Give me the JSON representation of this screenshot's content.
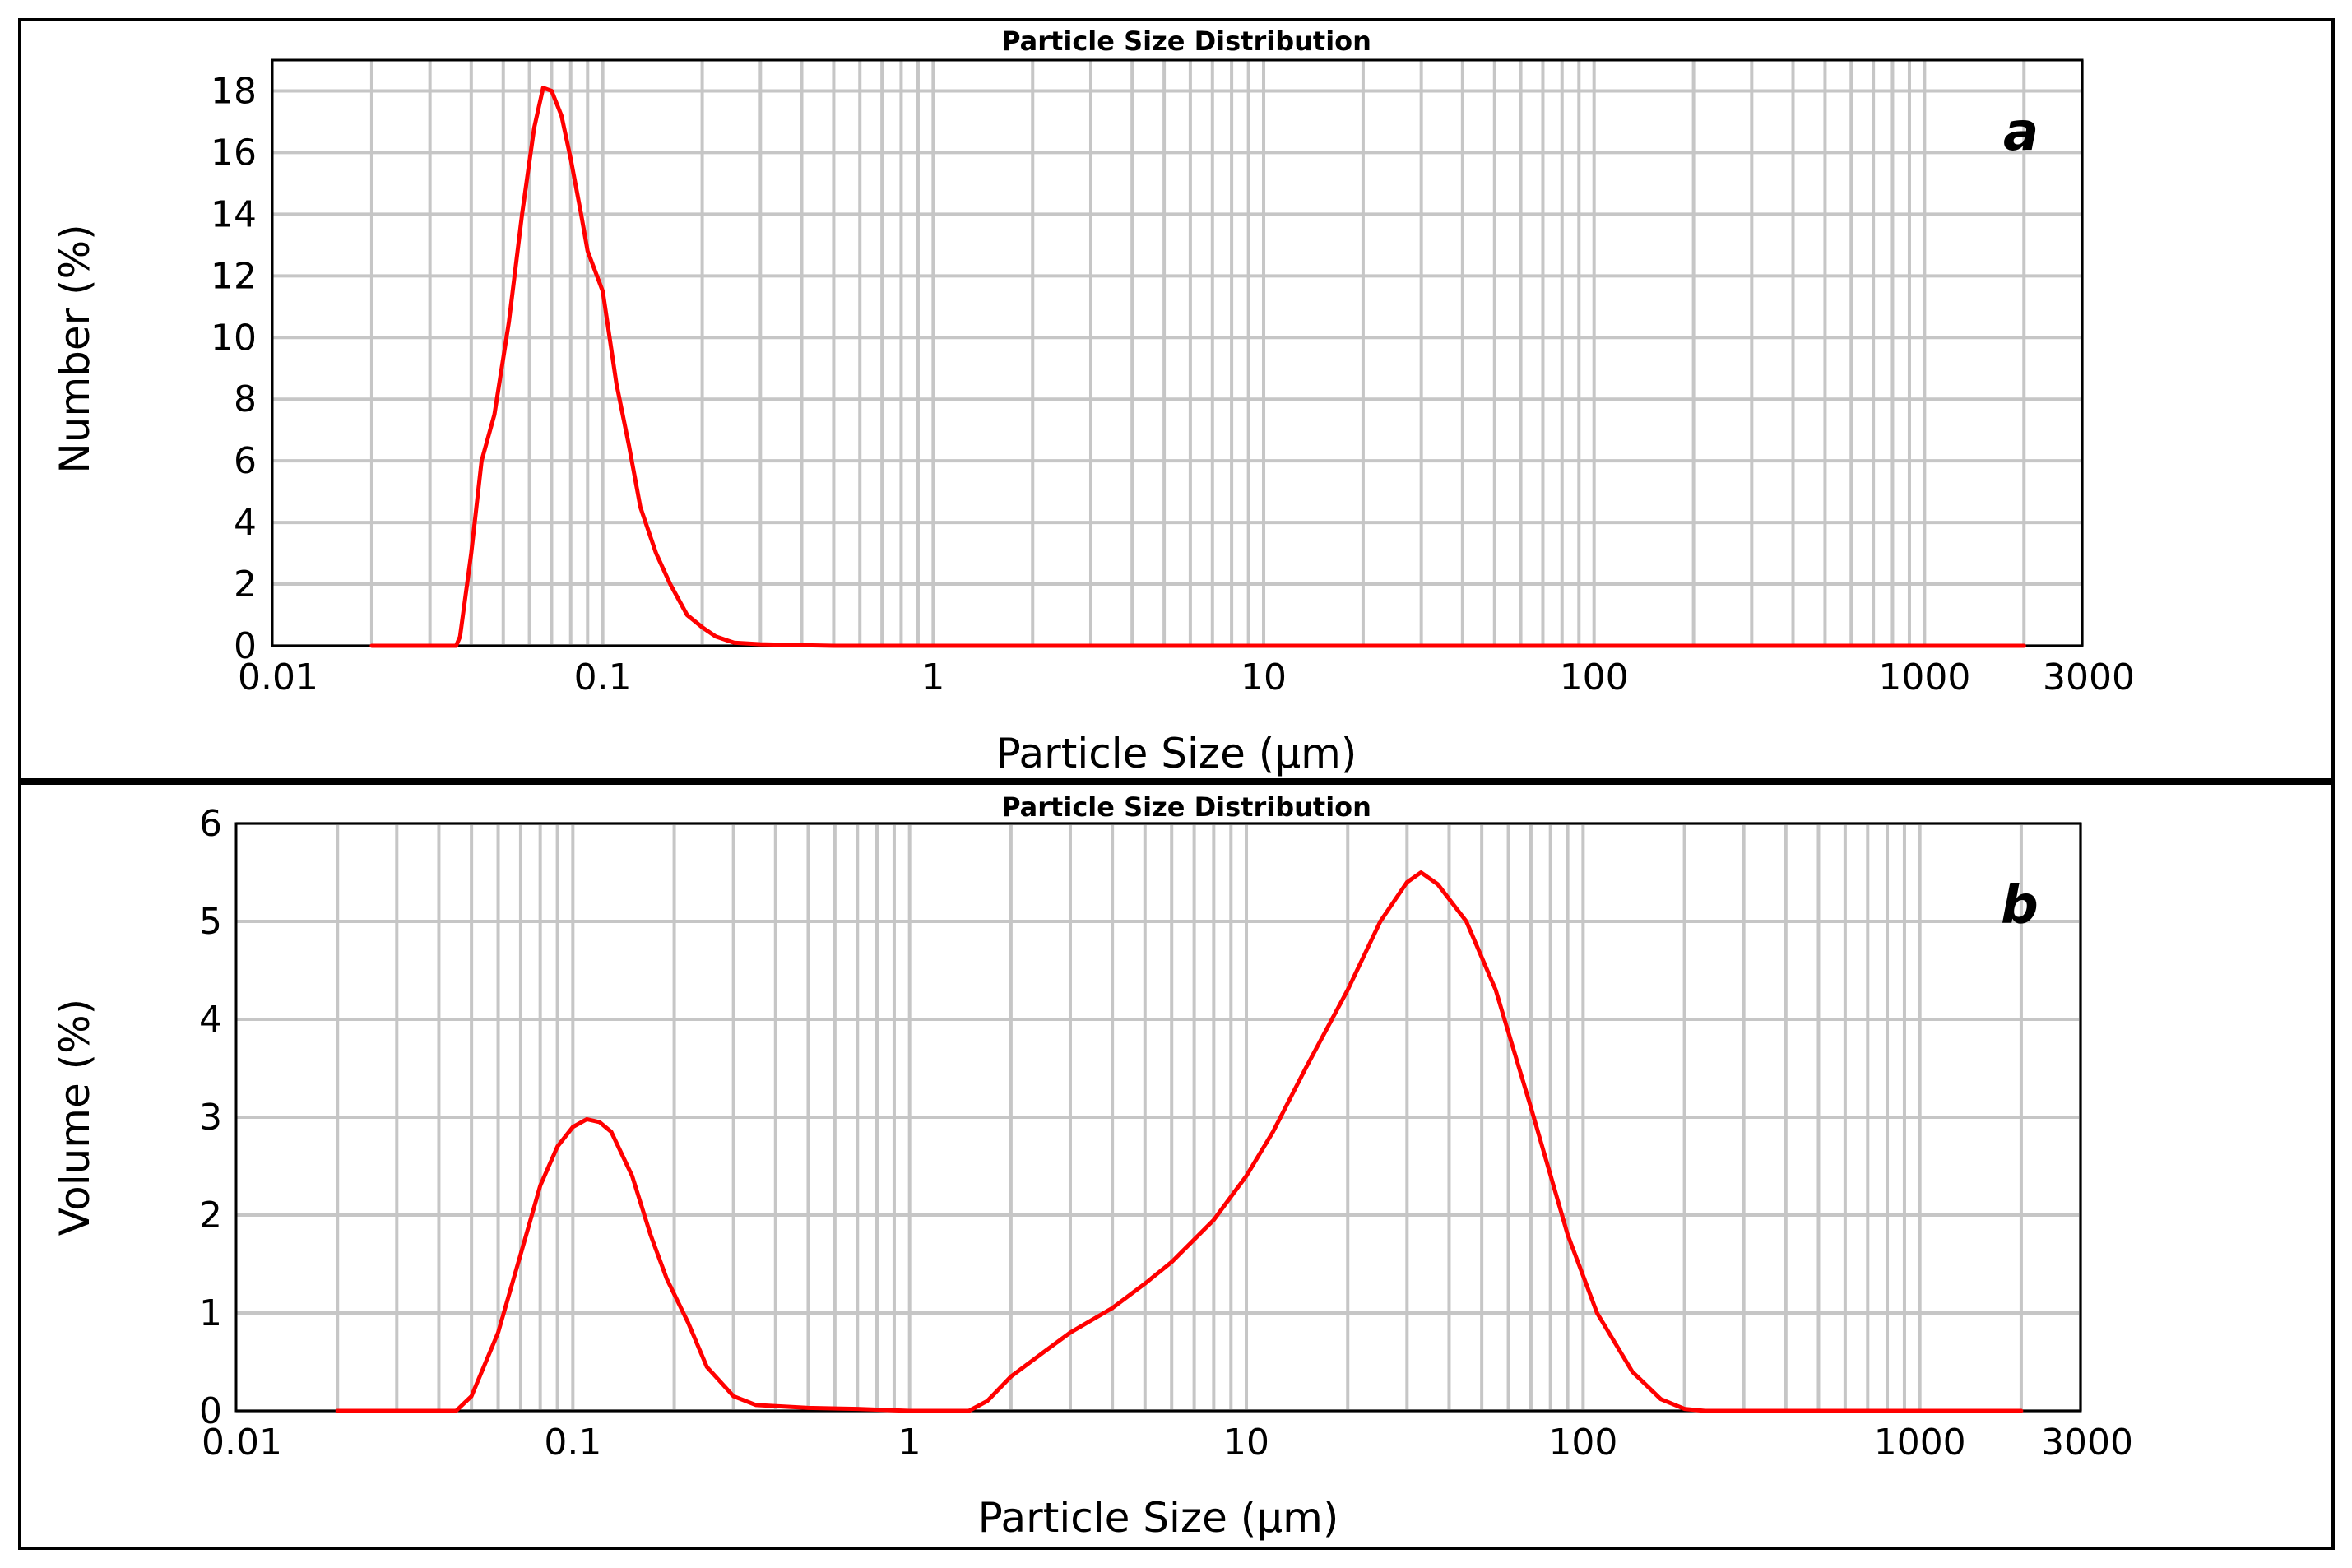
{
  "chart_data": [
    {
      "type": "line",
      "panel": "a",
      "title": "Particle Size Distribution",
      "xlabel": "Particle Size (µm)",
      "ylabel": "Number (%)",
      "xscale": "log",
      "xlim": [
        0.01,
        3000
      ],
      "ylim": [
        0,
        19
      ],
      "x_tick_labels": [
        "0.01",
        "0.1",
        "1",
        "10",
        "100",
        "1000",
        "3000"
      ],
      "y_tick_labels": [
        "0",
        "2",
        "4",
        "6",
        "8",
        "10",
        "12",
        "14",
        "16",
        "18"
      ],
      "series": [
        {
          "name": "Number (%)",
          "color": "#ff0000",
          "points": [
            [
              0.02,
              0
            ],
            [
              0.036,
              0
            ],
            [
              0.037,
              0.3
            ],
            [
              0.04,
              3
            ],
            [
              0.043,
              6
            ],
            [
              0.047,
              7.5
            ],
            [
              0.052,
              10.5
            ],
            [
              0.057,
              14
            ],
            [
              0.062,
              16.8
            ],
            [
              0.066,
              18.1
            ],
            [
              0.07,
              18.0
            ],
            [
              0.075,
              17.2
            ],
            [
              0.08,
              15.8
            ],
            [
              0.086,
              14.0
            ],
            [
              0.09,
              12.8
            ],
            [
              0.1,
              11.5
            ],
            [
              0.11,
              8.5
            ],
            [
              0.12,
              6.5
            ],
            [
              0.13,
              4.5
            ],
            [
              0.145,
              3.0
            ],
            [
              0.16,
              2.0
            ],
            [
              0.18,
              1.0
            ],
            [
              0.2,
              0.6
            ],
            [
              0.22,
              0.3
            ],
            [
              0.25,
              0.1
            ],
            [
              0.3,
              0.05
            ],
            [
              0.4,
              0.02
            ],
            [
              0.5,
              0
            ],
            [
              1,
              0
            ],
            [
              10,
              0
            ],
            [
              100,
              0
            ],
            [
              2000,
              0
            ]
          ]
        }
      ]
    },
    {
      "type": "line",
      "panel": "b",
      "title": "Particle Size Distribution",
      "xlabel": "Particle Size (µm)",
      "ylabel": "Volume (%)",
      "xscale": "log",
      "xlim": [
        0.01,
        3000
      ],
      "ylim": [
        0,
        6
      ],
      "x_tick_labels": [
        "0.01",
        "0.1",
        "1",
        "10",
        "100",
        "1000",
        "3000"
      ],
      "y_tick_labels": [
        "0",
        "1",
        "2",
        "3",
        "4",
        "5",
        "6"
      ],
      "series": [
        {
          "name": "Volume (%)",
          "color": "#ff0000",
          "points": [
            [
              0.02,
              0
            ],
            [
              0.045,
              0
            ],
            [
              0.05,
              0.15
            ],
            [
              0.06,
              0.8
            ],
            [
              0.07,
              1.6
            ],
            [
              0.08,
              2.3
            ],
            [
              0.09,
              2.7
            ],
            [
              0.1,
              2.9
            ],
            [
              0.11,
              2.98
            ],
            [
              0.12,
              2.95
            ],
            [
              0.13,
              2.85
            ],
            [
              0.15,
              2.4
            ],
            [
              0.17,
              1.8
            ],
            [
              0.19,
              1.35
            ],
            [
              0.22,
              0.9
            ],
            [
              0.25,
              0.45
            ],
            [
              0.3,
              0.15
            ],
            [
              0.35,
              0.06
            ],
            [
              0.5,
              0.03
            ],
            [
              0.7,
              0.02
            ],
            [
              1.0,
              0.0
            ],
            [
              1.5,
              0.0
            ],
            [
              1.7,
              0.1
            ],
            [
              2.0,
              0.35
            ],
            [
              2.5,
              0.6
            ],
            [
              3.0,
              0.8
            ],
            [
              4.0,
              1.05
            ],
            [
              5.0,
              1.3
            ],
            [
              6.0,
              1.52
            ],
            [
              8.0,
              1.95
            ],
            [
              10.0,
              2.4
            ],
            [
              12.0,
              2.85
            ],
            [
              15.0,
              3.5
            ],
            [
              20.0,
              4.3
            ],
            [
              25.0,
              5.0
            ],
            [
              30.0,
              5.4
            ],
            [
              33.0,
              5.5
            ],
            [
              37.0,
              5.38
            ],
            [
              45.0,
              5.0
            ],
            [
              55.0,
              4.3
            ],
            [
              70.0,
              3.1
            ],
            [
              90.0,
              1.8
            ],
            [
              110.0,
              1.0
            ],
            [
              140.0,
              0.4
            ],
            [
              170.0,
              0.12
            ],
            [
              200.0,
              0.02
            ],
            [
              230.0,
              0.0
            ],
            [
              1000.0,
              0.0
            ],
            [
              2000.0,
              0.0
            ]
          ]
        }
      ]
    }
  ]
}
